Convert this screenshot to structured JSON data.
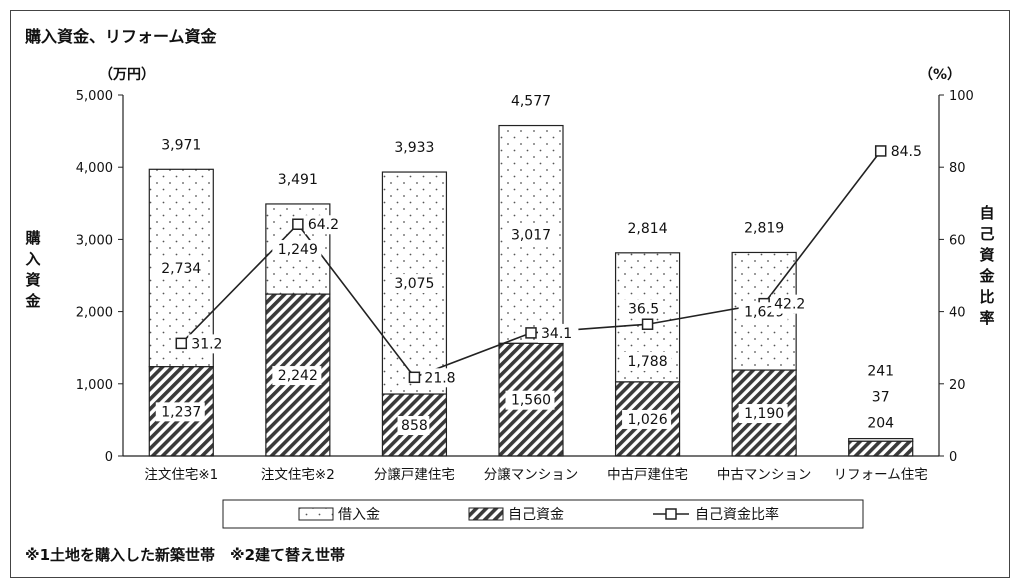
{
  "chart_data": {
    "type": "bar",
    "title": "購入資金、リフォーム資金",
    "left_unit": "（万円）",
    "right_unit": "（%）",
    "ylabel": "購入資金",
    "y2label": "自己資金比率",
    "ylim": [
      0,
      5000
    ],
    "y2lim": [
      0,
      100
    ],
    "yticks": [
      "0",
      "1,000",
      "2,000",
      "3,000",
      "4,000",
      "5,000"
    ],
    "y2ticks": [
      "0",
      "20",
      "40",
      "60",
      "80",
      "100"
    ],
    "categories": [
      "注文住宅※1",
      "注文住宅※2",
      "分譲戸建住宅",
      "分譲マンション",
      "中古戸建住宅",
      "中古マンション",
      "リフォーム住宅"
    ],
    "series": [
      {
        "name": "自己資金",
        "values": [
          1237,
          2242,
          858,
          1560,
          1026,
          1190,
          204
        ],
        "labels": [
          "1,237",
          "2,242",
          "858",
          "1,560",
          "1,026",
          "1,190",
          "204"
        ]
      },
      {
        "name": "借入金",
        "values": [
          2734,
          1249,
          3075,
          3017,
          1788,
          1629,
          37
        ],
        "labels": [
          "2,734",
          "1,249",
          "3,075",
          "3,017",
          "1,788",
          "1,629",
          "37"
        ]
      },
      {
        "name": "自己資金比率",
        "values": [
          31.2,
          64.2,
          21.8,
          34.1,
          36.5,
          42.2,
          84.5
        ],
        "labels": [
          "31.2",
          "64.2",
          "21.8",
          "34.1",
          "36.5",
          "42.2",
          "84.5"
        ]
      }
    ],
    "totals": [
      3971,
      3491,
      3933,
      4577,
      2814,
      2819,
      241
    ],
    "total_labels": [
      "3,971",
      "3,491",
      "3,933",
      "4,577",
      "2,814",
      "2,819",
      "241"
    ],
    "grid": false,
    "legend_position": "bottom",
    "footnote": "※1土地を購入した新築世帯　※2建て替え世帯"
  }
}
